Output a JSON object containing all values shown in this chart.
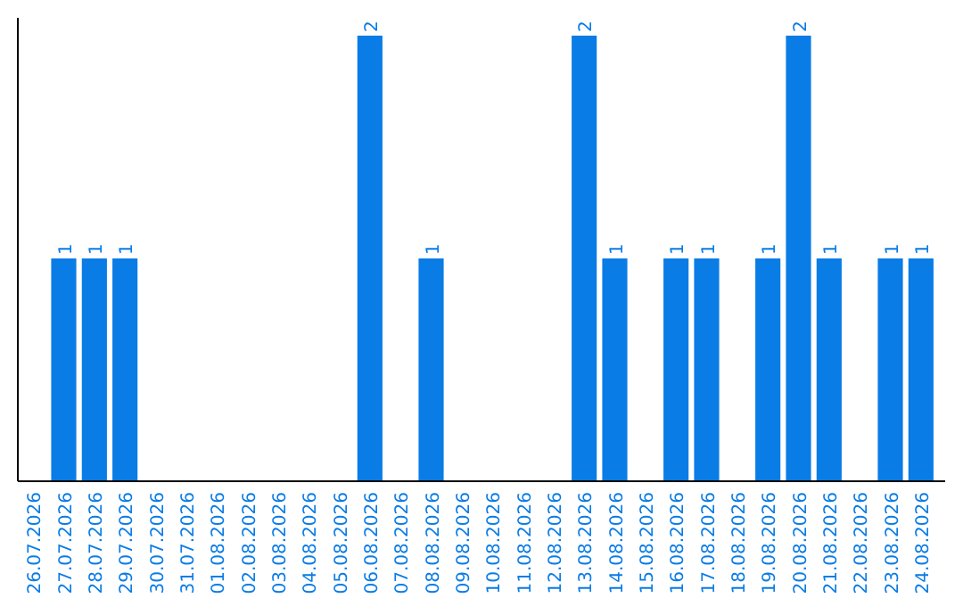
{
  "chart_data": {
    "type": "bar",
    "categories": [
      "26.07.2026",
      "27.07.2026",
      "28.07.2026",
      "29.07.2026",
      "30.07.2026",
      "31.07.2026",
      "01.08.2026",
      "02.08.2026",
      "03.08.2026",
      "04.08.2026",
      "05.08.2026",
      "06.08.2026",
      "07.08.2026",
      "08.08.2026",
      "09.08.2026",
      "10.08.2026",
      "11.08.2026",
      "12.08.2026",
      "13.08.2026",
      "14.08.2026",
      "15.08.2026",
      "16.08.2026",
      "17.08.2026",
      "18.08.2026",
      "19.08.2026",
      "20.08.2026",
      "21.08.2026",
      "22.08.2026",
      "23.08.2026",
      "24.08.2026"
    ],
    "values": [
      0,
      1,
      1,
      1,
      0,
      0,
      0,
      0,
      0,
      0,
      0,
      2,
      0,
      1,
      0,
      0,
      0,
      0,
      2,
      1,
      0,
      1,
      1,
      0,
      1,
      2,
      1,
      0,
      1,
      1
    ],
    "value_labels": [
      null,
      "1",
      "1",
      "1",
      null,
      null,
      null,
      null,
      null,
      null,
      null,
      "2",
      null,
      "1",
      null,
      null,
      null,
      null,
      "2",
      "1",
      null,
      "1",
      "1",
      null,
      "1",
      "2",
      "1",
      null,
      "1",
      "1"
    ],
    "color": "#0a7ce6",
    "tick_labels": "x"
  }
}
